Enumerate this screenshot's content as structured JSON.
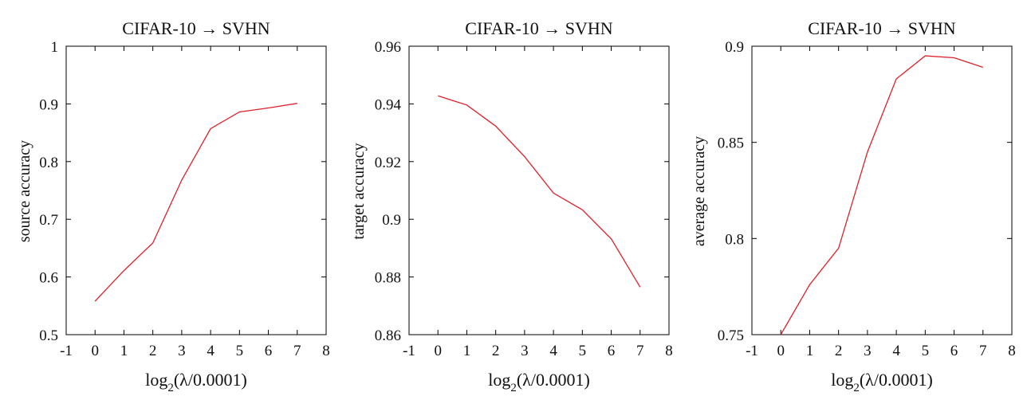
{
  "chart_data": [
    {
      "type": "line",
      "title": "CIFAR-10 → SVHN",
      "xlabel_prefix": "log",
      "xlabel_sub": "2",
      "xlabel_rest": "(λ/0.0001)",
      "ylabel": "source accuracy",
      "xlim": [
        -1,
        8
      ],
      "ylim": [
        0.5,
        1
      ],
      "xticks": [
        "-1",
        "0",
        "1",
        "2",
        "3",
        "4",
        "5",
        "6",
        "7",
        "8"
      ],
      "yticks": [
        "0.5",
        "0.6",
        "0.7",
        "0.8",
        "0.9",
        "1"
      ],
      "series": [
        {
          "name": "source accuracy",
          "color": "#e0202a",
          "x": [
            0,
            1,
            2,
            3,
            4,
            5,
            6,
            7
          ],
          "y": [
            0.558,
            0.611,
            0.659,
            0.768,
            0.857,
            0.886,
            0.893,
            0.901
          ]
        }
      ]
    },
    {
      "type": "line",
      "title": "CIFAR-10 → SVHN",
      "xlabel_prefix": "log",
      "xlabel_sub": "2",
      "xlabel_rest": "(λ/0.0001)",
      "ylabel": "target accuracy",
      "xlim": [
        -1,
        8
      ],
      "ylim": [
        0.86,
        0.96
      ],
      "xticks": [
        "-1",
        "0",
        "1",
        "2",
        "3",
        "4",
        "5",
        "6",
        "7",
        "8"
      ],
      "yticks": [
        "0.86",
        "0.88",
        "0.9",
        "0.92",
        "0.94",
        "0.96"
      ],
      "series": [
        {
          "name": "target accuracy",
          "color": "#e0202a",
          "x": [
            0,
            1,
            2,
            3,
            4,
            5,
            6,
            7
          ],
          "y": [
            0.9428,
            0.9396,
            0.9323,
            0.9217,
            0.9091,
            0.9033,
            0.8932,
            0.8765
          ]
        }
      ]
    },
    {
      "type": "line",
      "title": "CIFAR-10 → SVHN",
      "xlabel_prefix": "log",
      "xlabel_sub": "2",
      "xlabel_rest": "(λ/0.0001)",
      "ylabel": "average accuracy",
      "xlim": [
        -1,
        8
      ],
      "ylim": [
        0.75,
        0.9
      ],
      "xticks": [
        "-1",
        "0",
        "1",
        "2",
        "3",
        "4",
        "5",
        "6",
        "7",
        "8"
      ],
      "yticks": [
        "0.75",
        "0.8",
        "0.85",
        "0.9"
      ],
      "series": [
        {
          "name": "average accuracy",
          "color": "#e0202a",
          "x": [
            0,
            1,
            2,
            3,
            4,
            5,
            6,
            7
          ],
          "y": [
            0.75,
            0.776,
            0.795,
            0.845,
            0.883,
            0.895,
            0.894,
            0.889
          ]
        }
      ]
    }
  ]
}
